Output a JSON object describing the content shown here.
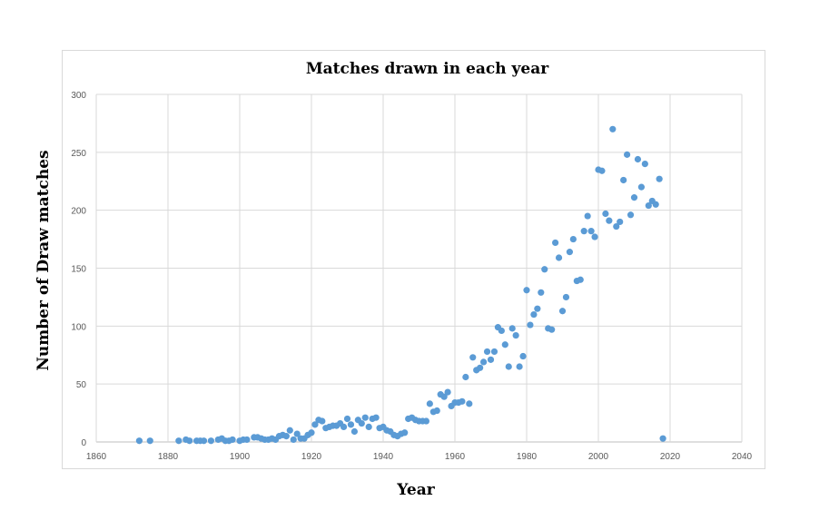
{
  "chart_data": {
    "type": "scatter",
    "title": "Matches drawn in each year",
    "xlabel": "Year",
    "ylabel": "Number of Draw matches",
    "xlim": [
      1860,
      2040
    ],
    "ylim": [
      0,
      300
    ],
    "x_ticks": [
      "1860",
      "1880",
      "1900",
      "1920",
      "1940",
      "1960",
      "1980",
      "2000",
      "2020",
      "2040"
    ],
    "y_ticks": [
      "0",
      "50",
      "100",
      "150",
      "200",
      "250",
      "300"
    ],
    "grid": true,
    "legend": "none",
    "marker_color": "#5b9bd5",
    "series": [
      {
        "x": [
          1872,
          1875,
          1883,
          1885,
          1886,
          1888,
          1889,
          1890,
          1892,
          1894,
          1895,
          1896,
          1897,
          1898,
          1900,
          1901,
          1902,
          1904,
          1905,
          1906,
          1907,
          1908,
          1909,
          1910,
          1911,
          1912,
          1913,
          1914,
          1915,
          1916,
          1917,
          1918,
          1919,
          1920,
          1921,
          1922,
          1923,
          1924,
          1925,
          1926,
          1927,
          1928,
          1929,
          1930,
          1931,
          1932,
          1933,
          1934,
          1935,
          1936,
          1937,
          1938,
          1939,
          1940,
          1941,
          1942,
          1943,
          1944,
          1945,
          1946,
          1947,
          1948,
          1949,
          1950,
          1951,
          1952,
          1953,
          1954,
          1955,
          1956,
          1957,
          1958,
          1959,
          1960,
          1961,
          1962,
          1963,
          1964,
          1965,
          1966,
          1967,
          1968,
          1969,
          1970,
          1971,
          1972,
          1973,
          1974,
          1975,
          1976,
          1977,
          1978,
          1979,
          1980,
          1981,
          1982,
          1983,
          1984,
          1985,
          1986,
          1987,
          1988,
          1989,
          1990,
          1991,
          1992,
          1993,
          1994,
          1995,
          1996,
          1997,
          1998,
          1999,
          2000,
          2001,
          2002,
          2003,
          2004,
          2005,
          2006,
          2007,
          2008,
          2009,
          2010,
          2011,
          2012,
          2013,
          2014,
          2015,
          2016,
          2017,
          2018
        ],
        "y": [
          1,
          1,
          1,
          2,
          1,
          1,
          1,
          1,
          1,
          2,
          3,
          1,
          1,
          2,
          1,
          2,
          2,
          4,
          4,
          3,
          2,
          2,
          3,
          2,
          5,
          6,
          5,
          10,
          2,
          7,
          3,
          3,
          6,
          8,
          15,
          19,
          18,
          12,
          13,
          14,
          14,
          16,
          13,
          20,
          15,
          9,
          19,
          16,
          21,
          13,
          20,
          21,
          12,
          13,
          10,
          9,
          6,
          5,
          7,
          8,
          20,
          21,
          19,
          18,
          18,
          18,
          33,
          26,
          27,
          41,
          39,
          43,
          31,
          34,
          34,
          35,
          56,
          33,
          73,
          62,
          64,
          69,
          78,
          71,
          78,
          99,
          96,
          84,
          65,
          98,
          92,
          65,
          74,
          131,
          101,
          110,
          115,
          129,
          149,
          98,
          97,
          172,
          159,
          113,
          125,
          164,
          175,
          139,
          140,
          182,
          195,
          182,
          177,
          235,
          234,
          197,
          191,
          270,
          186,
          190,
          226,
          248,
          196,
          211,
          244,
          220,
          240,
          204,
          208,
          205,
          227,
          3
        ]
      }
    ]
  }
}
